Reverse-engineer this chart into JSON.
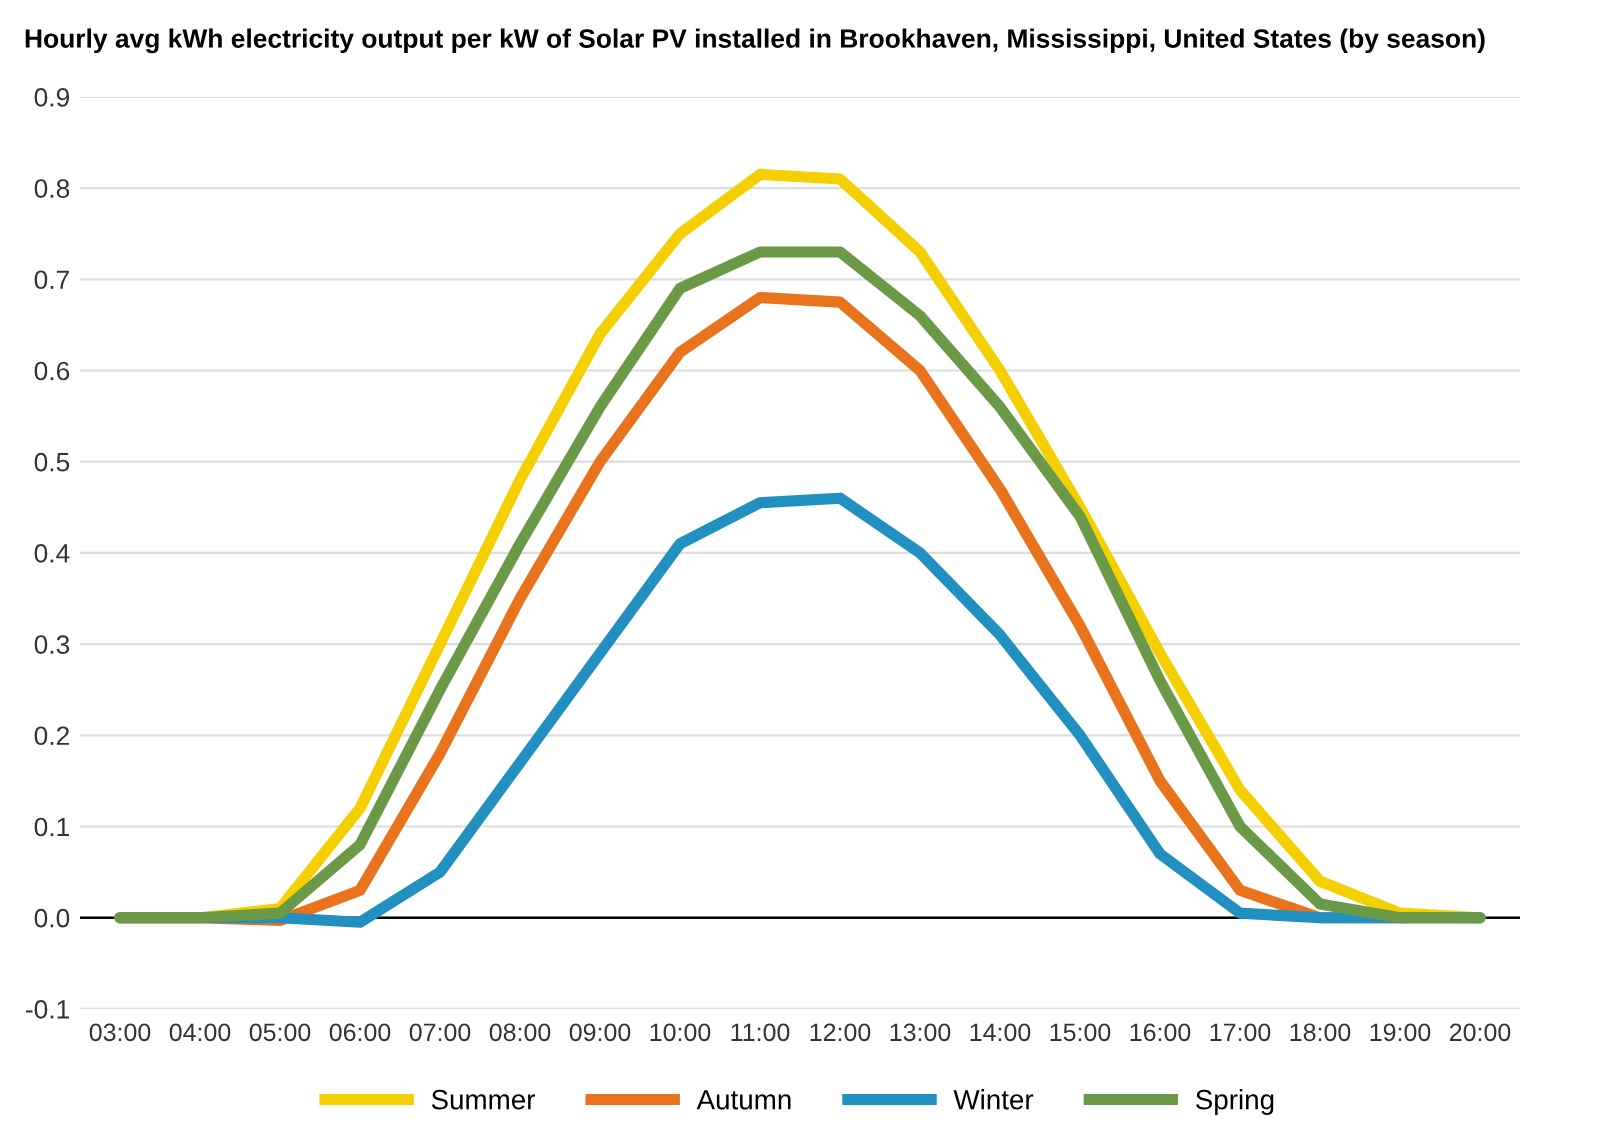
{
  "chart_data": {
    "type": "line",
    "title": "Hourly avg kWh electricity output per kW of Solar PV installed in Brookhaven, Mississippi, United States (by season)",
    "x": [
      3,
      4,
      5,
      6,
      7,
      8,
      9,
      10,
      11,
      12,
      13,
      14,
      15,
      16,
      17,
      18,
      19,
      20
    ],
    "series": [
      {
        "name": "Summer",
        "color": "#f5d000",
        "values": [
          0,
          0,
          0.01,
          0.12,
          0.3,
          0.48,
          0.64,
          0.75,
          0.815,
          0.81,
          0.73,
          0.6,
          0.45,
          0.29,
          0.14,
          0.04,
          0.005,
          0
        ]
      },
      {
        "name": "Autumn",
        "color": "#e8731c",
        "values": [
          0,
          0,
          -0.003,
          0.03,
          0.18,
          0.35,
          0.5,
          0.62,
          0.68,
          0.675,
          0.6,
          0.47,
          0.32,
          0.15,
          0.03,
          0,
          0,
          0
        ]
      },
      {
        "name": "Winter",
        "color": "#2190c0",
        "values": [
          0,
          0,
          0,
          -0.005,
          0.05,
          0.17,
          0.29,
          0.41,
          0.455,
          0.46,
          0.4,
          0.31,
          0.2,
          0.07,
          0.005,
          0,
          0,
          0
        ]
      },
      {
        "name": "Spring",
        "color": "#6a9a48",
        "values": [
          0,
          0,
          0.005,
          0.08,
          0.25,
          0.41,
          0.56,
          0.69,
          0.73,
          0.73,
          0.66,
          0.56,
          0.44,
          0.26,
          0.1,
          0.015,
          0,
          0
        ]
      }
    ],
    "xlim": [
      2.5,
      20.5
    ],
    "xticks": [
      {
        "value": 3,
        "label": "03:00"
      },
      {
        "value": 4,
        "label": "04:00"
      },
      {
        "value": 5,
        "label": "05:00"
      },
      {
        "value": 6,
        "label": "06:00"
      },
      {
        "value": 7,
        "label": "07:00"
      },
      {
        "value": 8,
        "label": "08:00"
      },
      {
        "value": 9,
        "label": "09:00"
      },
      {
        "value": 10,
        "label": "10:00"
      },
      {
        "value": 11,
        "label": "11:00"
      },
      {
        "value": 12,
        "label": "12:00"
      },
      {
        "value": 13,
        "label": "13:00"
      },
      {
        "value": 14,
        "label": "14:00"
      },
      {
        "value": 15,
        "label": "15:00"
      },
      {
        "value": 16,
        "label": "16:00"
      },
      {
        "value": 17,
        "label": "17:00"
      },
      {
        "value": 18,
        "label": "18:00"
      },
      {
        "value": 19,
        "label": "19:00"
      },
      {
        "value": 20,
        "label": "20:00"
      }
    ],
    "ylim": [
      -0.1,
      0.9
    ],
    "yticks": [
      {
        "value": -0.1,
        "label": "-0.1"
      },
      {
        "value": 0,
        "label": "0.0"
      },
      {
        "value": 0.1,
        "label": "0.1"
      },
      {
        "value": 0.2,
        "label": "0.2"
      },
      {
        "value": 0.3,
        "label": "0.3"
      },
      {
        "value": 0.4,
        "label": "0.4"
      },
      {
        "value": 0.5,
        "label": "0.5"
      },
      {
        "value": 0.6,
        "label": "0.6"
      },
      {
        "value": 0.7,
        "label": "0.7"
      },
      {
        "value": 0.8,
        "label": "0.8"
      },
      {
        "value": 0.9,
        "label": "0.9"
      }
    ],
    "ref_lines": [
      {
        "axis": "y",
        "value": 0,
        "color": "#000000"
      }
    ],
    "grid": "y",
    "legend": "bottom",
    "line_style": "solid",
    "marker": "none"
  }
}
